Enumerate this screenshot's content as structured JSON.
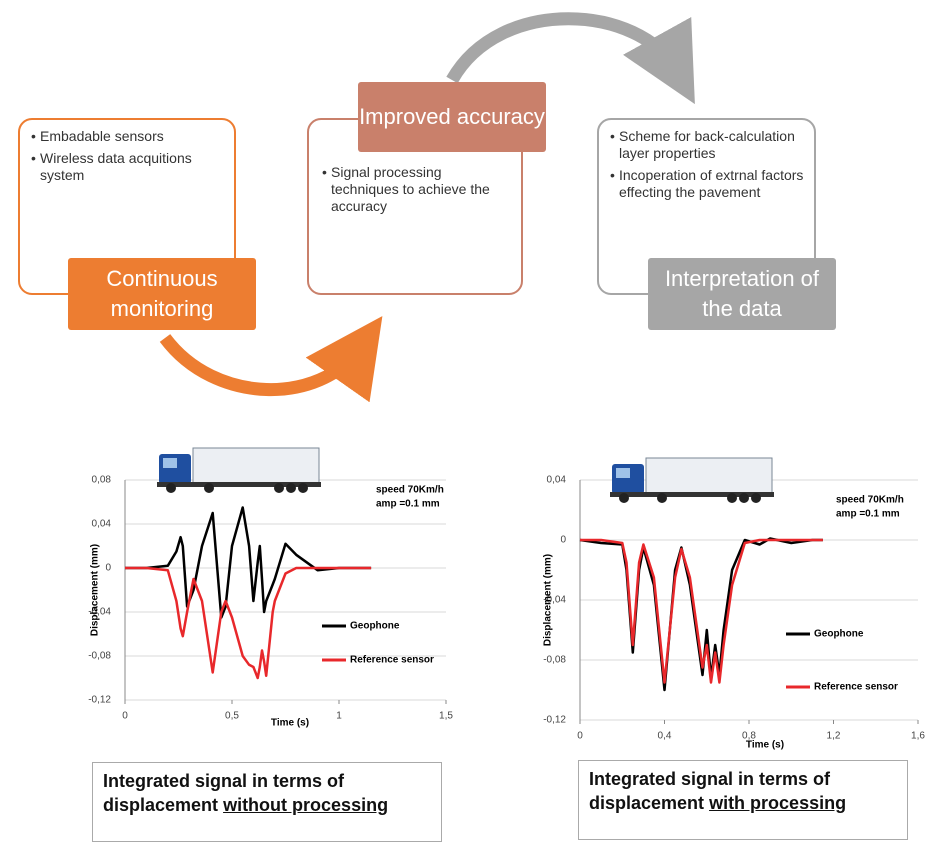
{
  "diagram": {
    "steps": [
      {
        "title": "Continuous monitoring",
        "bullets": [
          "Embadable sensors",
          "Wireless data acquitions system"
        ]
      },
      {
        "title": "Improved accuracy",
        "bullets": [
          "Signal processing techniques to achieve the accuracy"
        ]
      },
      {
        "title": "Interpretation of the data",
        "bullets": [
          "Scheme for back-calculation layer properties",
          "Incoperation of extrnal factors effecting the pavement"
        ]
      }
    ]
  },
  "chart_data": [
    {
      "type": "line",
      "xlabel": "Time (s)",
      "ylabel": "Displacement (mm)",
      "annotations": [
        "speed 70Km/h",
        "amp =0.1 mm"
      ],
      "caption": {
        "text": "Integrated signal in terms of displacement",
        "emphasis": "without processing"
      },
      "x": [
        0,
        0.1,
        0.2,
        0.24,
        0.26,
        0.27,
        0.29,
        0.32,
        0.36,
        0.41,
        0.45,
        0.47,
        0.5,
        0.55,
        0.58,
        0.6,
        0.62,
        0.63,
        0.64,
        0.65,
        0.66,
        0.69,
        0.7,
        0.75,
        0.8,
        0.9,
        1,
        1.15
      ],
      "series": [
        {
          "name": "Geophone",
          "color": "#000000",
          "values": [
            0,
            0,
            0.002,
            0.015,
            0.028,
            0.02,
            -0.035,
            -0.02,
            0.02,
            0.05,
            -0.045,
            -0.035,
            0.02,
            0.055,
            0.02,
            -0.03,
            0.005,
            0.02,
            -0.01,
            -0.04,
            -0.03,
            -0.015,
            -0.01,
            0.022,
            0.012,
            -0.002,
            0,
            0
          ]
        },
        {
          "name": "Reference sensor",
          "color": "#e8282b",
          "values": [
            0,
            0,
            -0.002,
            -0.03,
            -0.055,
            -0.062,
            -0.04,
            -0.01,
            -0.03,
            -0.095,
            -0.04,
            -0.03,
            -0.045,
            -0.08,
            -0.088,
            -0.09,
            -0.1,
            -0.09,
            -0.075,
            -0.085,
            -0.098,
            -0.04,
            -0.03,
            -0.005,
            0,
            0,
            0,
            0
          ]
        }
      ],
      "xlim": [
        0,
        1.5
      ],
      "xticks": [
        0,
        {
          "value": 0.5,
          "label": "0,5"
        },
        1,
        {
          "value": 1.5,
          "label": "1,5"
        }
      ],
      "ylim": [
        -0.12,
        0.08
      ],
      "yticks": [
        {
          "value": 0.08,
          "label": "0,08"
        },
        {
          "value": 0.04,
          "label": "0,04"
        },
        0,
        {
          "value": -0.04,
          "label": "-0,04"
        },
        {
          "value": -0.08,
          "label": "-0,08"
        },
        {
          "value": -0.12,
          "label": "-0,12"
        }
      ],
      "grid": true
    },
    {
      "type": "line",
      "xlabel": "Time (s)",
      "ylabel": "Displacement (mm)",
      "annotations": [
        "speed 70Km/h",
        "amp =0.1 mm"
      ],
      "caption": {
        "text": "Integrated signal in terms of displacement",
        "emphasis": "with processing"
      },
      "x": [
        0,
        0.1,
        0.2,
        0.22,
        0.25,
        0.28,
        0.3,
        0.35,
        0.4,
        0.45,
        0.48,
        0.52,
        0.58,
        0.6,
        0.62,
        0.64,
        0.66,
        0.68,
        0.72,
        0.78,
        0.85,
        0.9,
        1,
        1.1,
        1.15
      ],
      "series": [
        {
          "name": "Geophone",
          "color": "#000000",
          "values": [
            0,
            -0.002,
            -0.003,
            -0.02,
            -0.075,
            -0.02,
            -0.005,
            -0.03,
            -0.1,
            -0.02,
            -0.005,
            -0.03,
            -0.09,
            -0.06,
            -0.092,
            -0.07,
            -0.09,
            -0.06,
            -0.02,
            0,
            -0.003,
            0.001,
            -0.002,
            0,
            0
          ]
        },
        {
          "name": "Reference sensor",
          "color": "#e8282b",
          "values": [
            0,
            0,
            -0.002,
            -0.015,
            -0.07,
            -0.015,
            -0.003,
            -0.025,
            -0.095,
            -0.025,
            -0.006,
            -0.025,
            -0.085,
            -0.07,
            -0.095,
            -0.075,
            -0.095,
            -0.07,
            -0.03,
            -0.002,
            0,
            0,
            0,
            0,
            0
          ]
        }
      ],
      "xlim": [
        0,
        1.6
      ],
      "xticks": [
        0,
        {
          "value": 0.4,
          "label": "0,4"
        },
        {
          "value": 0.8,
          "label": "0,8"
        },
        {
          "value": 1.2,
          "label": "1,2"
        },
        {
          "value": 1.6,
          "label": "1,6"
        }
      ],
      "ylim": [
        -0.12,
        0.04
      ],
      "yticks": [
        {
          "value": 0.04,
          "label": "0,04"
        },
        0,
        {
          "value": -0.04,
          "label": "-0,04"
        },
        {
          "value": -0.08,
          "label": "-0,08"
        },
        {
          "value": -0.12,
          "label": "-0,12"
        }
      ],
      "grid": true
    }
  ]
}
